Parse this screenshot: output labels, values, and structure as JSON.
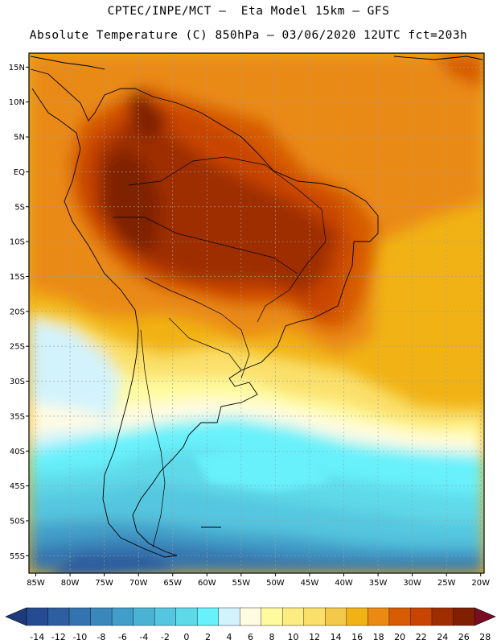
{
  "title": {
    "line1": "CPTEC/INPE/MCT –  Eta Model 15km – GFS",
    "line2": "Absolute Temperature (C) 850hPa – 03/06/2020 12UTC fct=203h"
  },
  "map": {
    "lon_min": -86,
    "lon_max": -19.5,
    "lat_min": -57.5,
    "lat_max": 17,
    "lat_labels": [
      {
        "lat": 15,
        "text": "15N"
      },
      {
        "lat": 10,
        "text": "10N"
      },
      {
        "lat": 5,
        "text": "5N"
      },
      {
        "lat": 0,
        "text": "EQ"
      },
      {
        "lat": -5,
        "text": "5S"
      },
      {
        "lat": -10,
        "text": "10S"
      },
      {
        "lat": -15,
        "text": "15S"
      },
      {
        "lat": -20,
        "text": "20S"
      },
      {
        "lat": -25,
        "text": "25S"
      },
      {
        "lat": -30,
        "text": "30S"
      },
      {
        "lat": -35,
        "text": "35S"
      },
      {
        "lat": -40,
        "text": "40S"
      },
      {
        "lat": -45,
        "text": "45S"
      },
      {
        "lat": -50,
        "text": "50S"
      },
      {
        "lat": -55,
        "text": "55S"
      }
    ],
    "lon_labels": [
      {
        "lon": -85,
        "text": "85W"
      },
      {
        "lon": -80,
        "text": "80W"
      },
      {
        "lon": -75,
        "text": "75W"
      },
      {
        "lon": -70,
        "text": "70W"
      },
      {
        "lon": -65,
        "text": "65W"
      },
      {
        "lon": -60,
        "text": "60W"
      },
      {
        "lon": -55,
        "text": "55W"
      },
      {
        "lon": -50,
        "text": "50W"
      },
      {
        "lon": -45,
        "text": "45W"
      },
      {
        "lon": -40,
        "text": "40W"
      },
      {
        "lon": -35,
        "text": "35W"
      },
      {
        "lon": -30,
        "text": "30W"
      },
      {
        "lon": -25,
        "text": "25W"
      },
      {
        "lon": -20,
        "text": "20W"
      }
    ]
  },
  "colorbar": {
    "labels": [
      "-14",
      "-12",
      "-10",
      "-8",
      "-6",
      "-4",
      "-2",
      "0",
      "2",
      "4",
      "6",
      "8",
      "10",
      "12",
      "14",
      "16",
      "18",
      "20",
      "22",
      "24",
      "26",
      "28"
    ],
    "colors": [
      "#264b92",
      "#2d5e9f",
      "#3474ae",
      "#3b87bb",
      "#429dc8",
      "#4bb2d4",
      "#55c6df",
      "#5ed9e8",
      "#67f1fb",
      "#d2f3fc",
      "#fffbe3",
      "#fefb9e",
      "#fcec82",
      "#fae06a",
      "#f4c84b",
      "#f1b215",
      "#ea8a12",
      "#d75c04",
      "#c84402",
      "#9e2e00",
      "#7f2003"
    ],
    "under_color": "#1d3a7d",
    "over_color": "#7a0d23"
  },
  "palette": {
    "background": "#ffffff",
    "border": "#000000",
    "grid": "#9aa0a6"
  }
}
